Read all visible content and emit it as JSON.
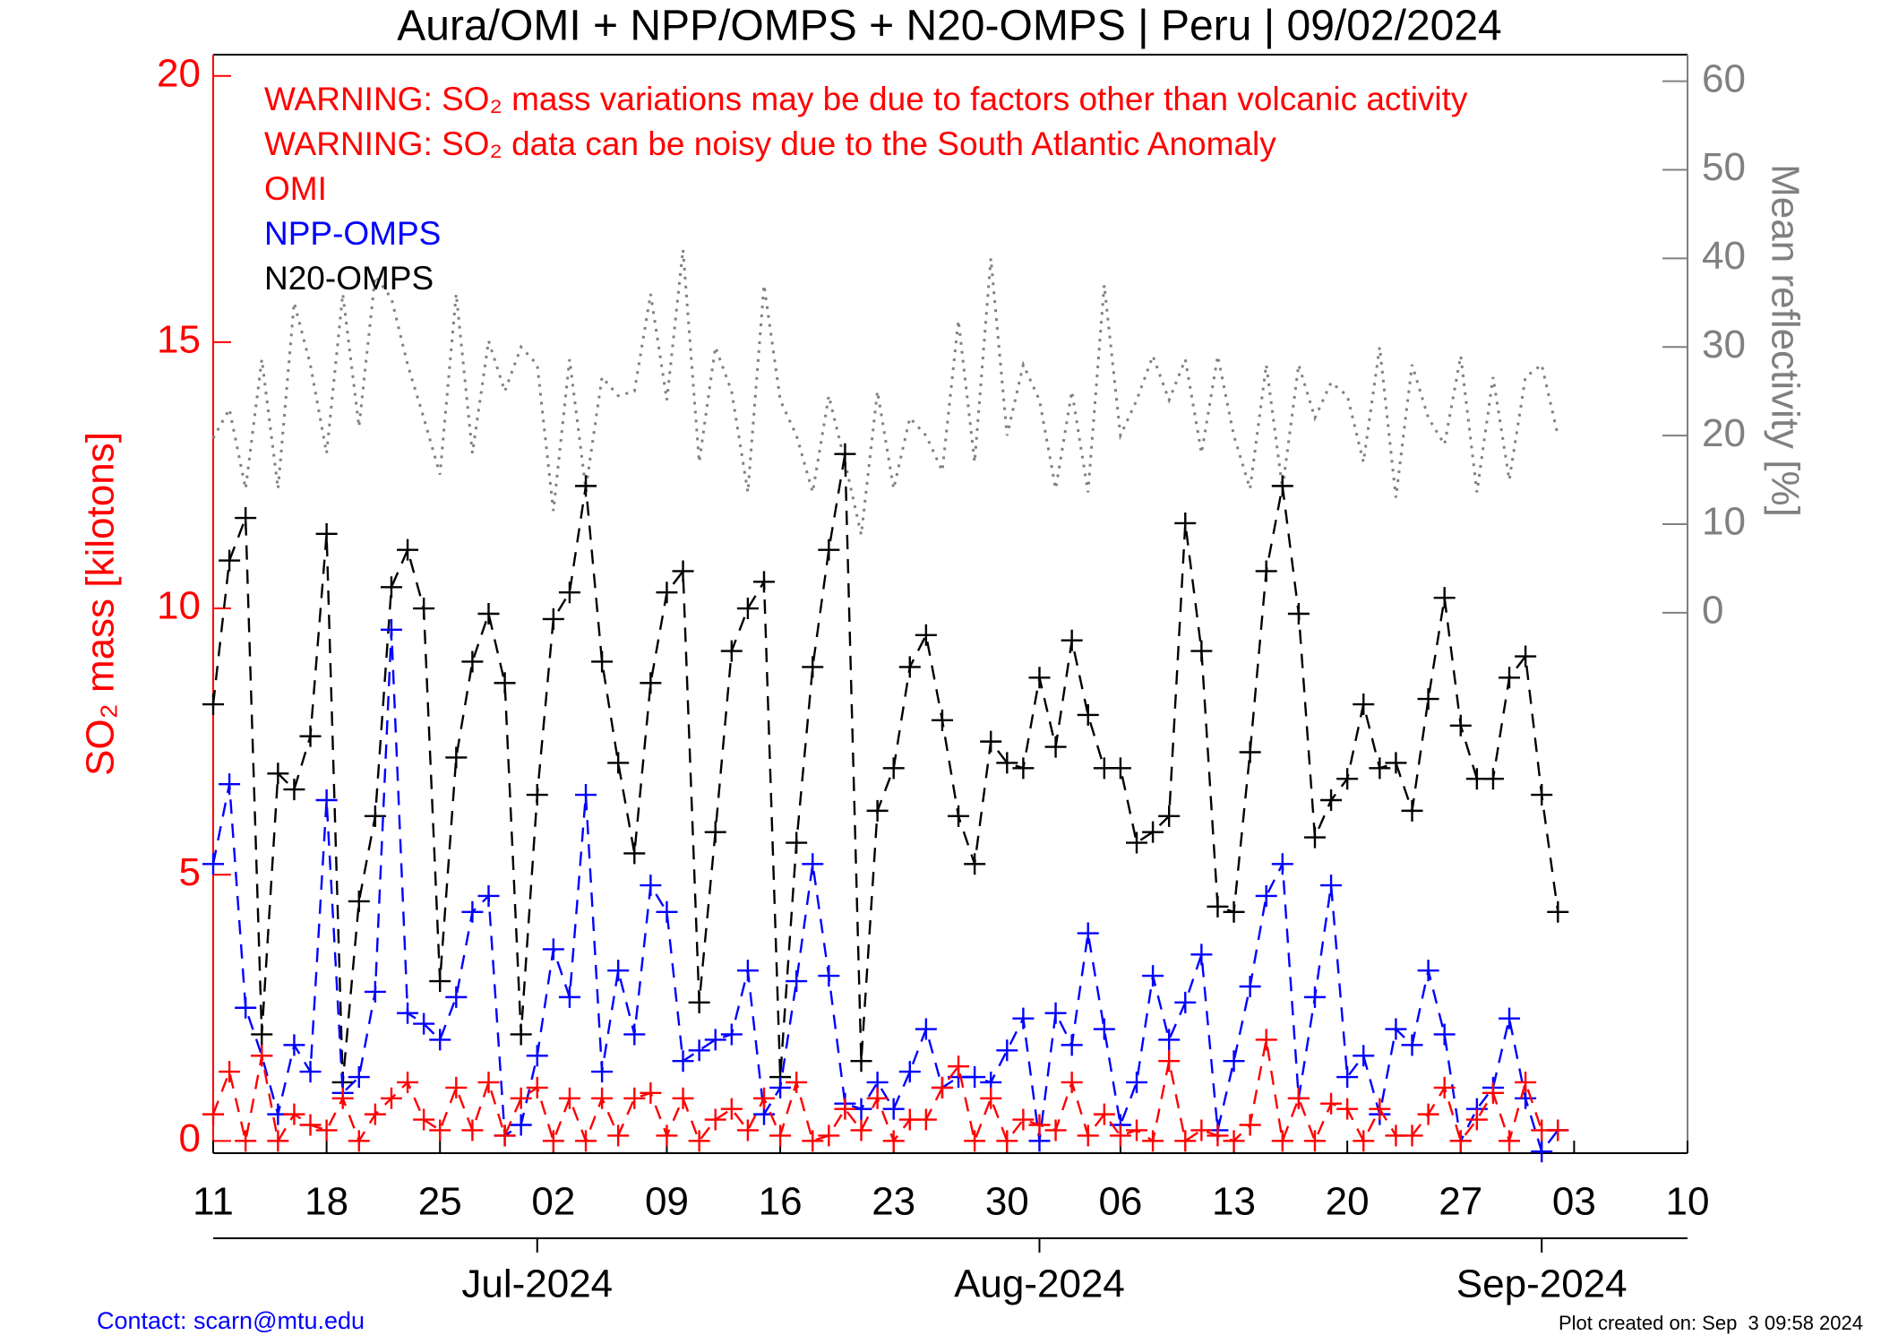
{
  "chart_data": {
    "type": "line",
    "title": "Aura/OMI + NPP/OMPS + N20-OMPS | Peru | 09/02/2024",
    "ylabel": "SO₂ mass [kilotons]",
    "y2label": "Mean reflectivity [%]",
    "annotations": [
      "WARNING: SO₂ mass variations may be due to factors other than volcanic activity",
      "WARNING: SO₂ data can be noisy due to the South Atlantic Anomaly"
    ],
    "contact": "Contact: scarn@mtu.edu",
    "created": "Plot created on: Sep  3 09:58 2024",
    "x": [
      "2024-06-11",
      "2024-06-12",
      "2024-06-13",
      "2024-06-14",
      "2024-06-15",
      "2024-06-16",
      "2024-06-17",
      "2024-06-18",
      "2024-06-19",
      "2024-06-20",
      "2024-06-21",
      "2024-06-22",
      "2024-06-23",
      "2024-06-24",
      "2024-06-25",
      "2024-06-26",
      "2024-06-27",
      "2024-06-28",
      "2024-06-29",
      "2024-06-30",
      "2024-07-01",
      "2024-07-02",
      "2024-07-03",
      "2024-07-04",
      "2024-07-05",
      "2024-07-06",
      "2024-07-07",
      "2024-07-08",
      "2024-07-09",
      "2024-07-10",
      "2024-07-11",
      "2024-07-12",
      "2024-07-13",
      "2024-07-14",
      "2024-07-15",
      "2024-07-16",
      "2024-07-17",
      "2024-07-18",
      "2024-07-19",
      "2024-07-20",
      "2024-07-21",
      "2024-07-22",
      "2024-07-23",
      "2024-07-24",
      "2024-07-25",
      "2024-07-26",
      "2024-07-27",
      "2024-07-28",
      "2024-07-29",
      "2024-07-30",
      "2024-07-31",
      "2024-08-01",
      "2024-08-02",
      "2024-08-03",
      "2024-08-04",
      "2024-08-05",
      "2024-08-06",
      "2024-08-07",
      "2024-08-08",
      "2024-08-09",
      "2024-08-10",
      "2024-08-11",
      "2024-08-12",
      "2024-08-13",
      "2024-08-14",
      "2024-08-15",
      "2024-08-16",
      "2024-08-17",
      "2024-08-18",
      "2024-08-19",
      "2024-08-20",
      "2024-08-21",
      "2024-08-22",
      "2024-08-23",
      "2024-08-24",
      "2024-08-25",
      "2024-08-26",
      "2024-08-27",
      "2024-08-28",
      "2024-08-29",
      "2024-08-30",
      "2024-08-31",
      "2024-09-01",
      "2024-09-02"
    ],
    "series": [
      {
        "color": "#808080",
        "axis": "y2",
        "style": "dotted",
        "markers": false,
        "values": [
          19.7,
          23,
          14,
          28.6,
          14,
          35,
          28,
          18,
          36,
          21,
          38,
          35.5,
          28,
          22,
          15.6,
          36,
          18,
          30.7,
          25,
          30,
          28,
          11.5,
          28.6,
          14,
          26.6,
          24.5,
          25,
          36,
          24,
          41,
          17,
          30,
          25,
          13.6,
          37,
          24,
          20,
          13.6,
          24.5,
          17,
          8.8,
          25,
          14,
          22,
          20,
          16,
          33,
          17,
          40,
          20,
          28,
          24,
          14,
          25,
          13.6,
          37,
          20,
          24,
          29,
          24,
          28.6,
          18,
          29,
          20,
          14,
          28,
          14,
          28,
          22,
          26,
          24.5,
          17,
          30,
          13,
          28,
          22,
          19,
          29,
          13.6,
          26.6,
          15,
          26.6,
          28,
          20
        ]
      },
      {
        "name": "N20-OMPS",
        "color": "#000000",
        "style": "dashed",
        "markers": true,
        "values": [
          8.2,
          10.9,
          11.7,
          2.0,
          6.9,
          6.6,
          7.6,
          11.4,
          1.1,
          4.5,
          6.1,
          10.4,
          11.1,
          10.0,
          3.0,
          7.2,
          9.0,
          9.9,
          8.6,
          2.0,
          6.5,
          9.8,
          10.3,
          12.3,
          9.0,
          7.1,
          5.4,
          8.6,
          10.3,
          10.7,
          2.6,
          5.8,
          9.2,
          10.0,
          10.5,
          1.2,
          5.6,
          8.9,
          11.1,
          12.9,
          1.5,
          6.2,
          7.0,
          8.9,
          9.5,
          7.9,
          6.1,
          5.2,
          7.5,
          7.1,
          7.0,
          8.7,
          7.4,
          9.4,
          8.0,
          7.0,
          7.0,
          5.6,
          5.8,
          6.1,
          11.6,
          9.2,
          4.4,
          4.3,
          7.3,
          10.7,
          12.3,
          9.9,
          5.7,
          6.4,
          6.8,
          8.2,
          7.0,
          7.1,
          6.2,
          8.3,
          10.2,
          7.8,
          6.8,
          6.8,
          8.7,
          9.1,
          6.5,
          4.3
        ]
      },
      {
        "name": "NPP-OMPS",
        "color": "#0000ff",
        "style": "dashed",
        "markers": true,
        "values": [
          5.2,
          6.7,
          2.5,
          1.6,
          0.5,
          1.8,
          1.3,
          6.4,
          0.9,
          1.2,
          2.8,
          9.6,
          2.4,
          2.2,
          1.9,
          2.7,
          4.3,
          4.6,
          0.1,
          0.3,
          1.6,
          3.6,
          2.7,
          6.5,
          1.3,
          3.2,
          2.0,
          4.8,
          4.3,
          1.5,
          1.7,
          1.9,
          2.0,
          3.2,
          0.5,
          1.0,
          3.0,
          5.2,
          3.1,
          0.7,
          0.6,
          1.1,
          0.6,
          1.3,
          2.1,
          1.0,
          1.2,
          1.2,
          1.1,
          1.7,
          2.3,
          0.0,
          2.4,
          1.8,
          3.9,
          2.1,
          0.3,
          1.1,
          3.1,
          1.9,
          2.6,
          3.5,
          0.2,
          1.5,
          2.9,
          4.6,
          5.2,
          0.8,
          2.7,
          4.8,
          1.2,
          1.6,
          0.5,
          2.1,
          1.8,
          3.2,
          2.0,
          0.0,
          0.6,
          1.0,
          2.3,
          0.8,
          -0.2,
          0.2
        ]
      },
      {
        "name": "OMI",
        "color": "#ff0000",
        "style": "dashed",
        "markers": true,
        "values": [
          0.5,
          1.3,
          0.0,
          1.6,
          0.0,
          0.5,
          0.3,
          0.2,
          0.8,
          0.0,
          0.5,
          0.8,
          1.1,
          0.4,
          0.2,
          1.0,
          0.2,
          1.1,
          0.1,
          0.8,
          1.0,
          0.0,
          0.8,
          0.0,
          0.8,
          0.1,
          0.8,
          0.9,
          0.1,
          0.8,
          0.0,
          0.4,
          0.6,
          0.2,
          0.8,
          0.1,
          1.1,
          0.0,
          0.1,
          0.6,
          0.2,
          0.8,
          0.0,
          0.4,
          0.4,
          1.0,
          1.4,
          0.0,
          0.8,
          0.0,
          0.4,
          0.3,
          0.2,
          1.1,
          0.1,
          0.5,
          0.1,
          0.2,
          0.0,
          1.5,
          0.0,
          0.2,
          0.1,
          0.0,
          0.3,
          1.9,
          0.0,
          0.8,
          0.0,
          0.7,
          0.6,
          0.0,
          0.6,
          0.1,
          0.1,
          0.5,
          1.0,
          0.0,
          0.4,
          0.9,
          0.0,
          1.1,
          0.2,
          0.2
        ]
      }
    ],
    "legend_order": [
      3,
      2,
      1
    ],
    "xlim": [
      "2024-06-11",
      "2024-09-10"
    ],
    "xticks": [
      {
        "value": "2024-06-11",
        "label": "11"
      },
      {
        "value": "2024-06-18",
        "label": "18"
      },
      {
        "value": "2024-06-25",
        "label": "25"
      },
      {
        "value": "2024-07-02",
        "label": "02"
      },
      {
        "value": "2024-07-09",
        "label": "09"
      },
      {
        "value": "2024-07-16",
        "label": "16"
      },
      {
        "value": "2024-07-23",
        "label": "23"
      },
      {
        "value": "2024-07-30",
        "label": "30"
      },
      {
        "value": "2024-08-06",
        "label": "06"
      },
      {
        "value": "2024-08-13",
        "label": "13"
      },
      {
        "value": "2024-08-20",
        "label": "20"
      },
      {
        "value": "2024-08-27",
        "label": "27"
      },
      {
        "value": "2024-09-03",
        "label": "03"
      },
      {
        "value": "2024-09-10",
        "label": "10"
      }
    ],
    "month_ticks": [
      {
        "value": "2024-07-01",
        "label": "Jul-2024"
      },
      {
        "value": "2024-08-01",
        "label": "Aug-2024"
      },
      {
        "value": "2024-09-01",
        "label": "Sep-2024"
      }
    ],
    "ylim": [
      -0.23,
      20.4
    ],
    "yticks": [
      0,
      5,
      10,
      15,
      20
    ],
    "ycolor": "#ff0000",
    "y2lim": [
      -61,
      63
    ],
    "y2ticks": [
      0,
      10,
      20,
      30,
      40,
      50,
      60
    ],
    "y2color": "#808080",
    "grid": false
  }
}
